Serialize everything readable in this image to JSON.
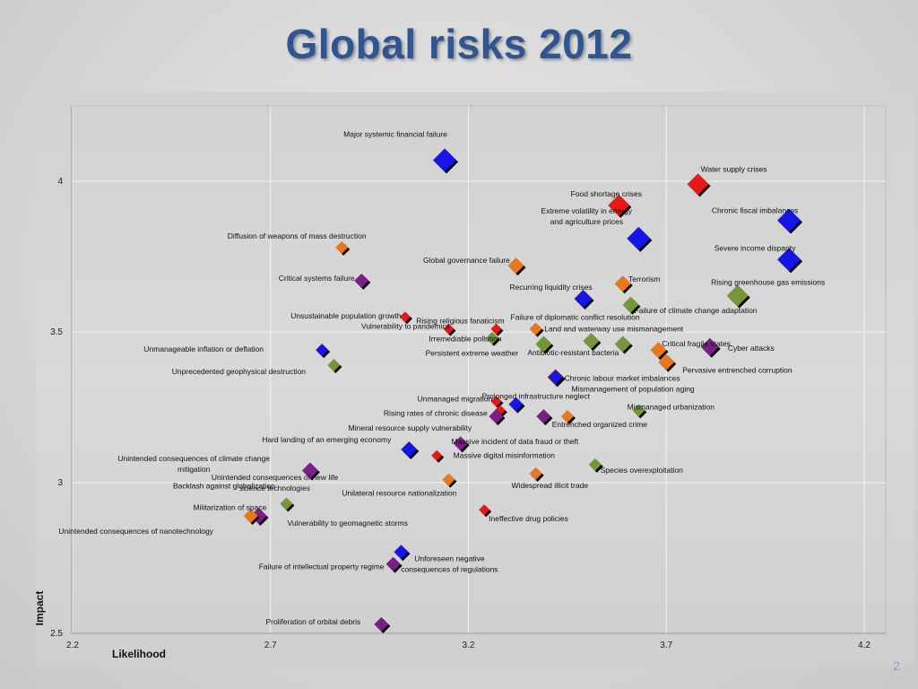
{
  "slide": {
    "title": "Global risks 2012",
    "page_number": "2"
  },
  "colors": {
    "blue": "#1515e6",
    "red": "#e61919",
    "orange": "#e6781e",
    "green": "#76963a",
    "purple": "#7a1f86"
  },
  "chart_data": {
    "type": "scatter",
    "xlabel": "Likelihood",
    "ylabel": "Impact",
    "xlim": [
      2.2,
      4.3
    ],
    "ylim": [
      2.5,
      4.25
    ],
    "xticks": [
      "2.2",
      "2.7",
      "3.2",
      "3.7",
      "4.2"
    ],
    "yticks": [
      "2.5",
      "3",
      "3.5",
      "4"
    ],
    "grid": true,
    "points": [
      {
        "label": "Major systemic financial failure",
        "x": 3.14,
        "y": 4.07,
        "c": "blue",
        "s": 13
      },
      {
        "label": "Water supply crises",
        "x": 3.78,
        "y": 3.99,
        "c": "red",
        "s": 12
      },
      {
        "label": "Food shortage crises",
        "x": 3.58,
        "y": 3.92,
        "c": "red",
        "s": 12
      },
      {
        "label": "Chronic fiscal imbalances",
        "x": 4.01,
        "y": 3.87,
        "c": "blue",
        "s": 13
      },
      {
        "label": "Extreme volatility in energy and agriculture prices",
        "x": 3.63,
        "y": 3.81,
        "c": "blue",
        "s": 13
      },
      {
        "label": "Diffusion of weapons of mass destruction",
        "x": 2.88,
        "y": 3.78,
        "c": "orange",
        "s": 7
      },
      {
        "label": "Severe income disparity",
        "x": 4.01,
        "y": 3.74,
        "c": "blue",
        "s": 13
      },
      {
        "label": "Global governance failure",
        "x": 3.32,
        "y": 3.72,
        "c": "orange",
        "s": 9
      },
      {
        "label": "Critical systems failure",
        "x": 2.93,
        "y": 3.67,
        "c": "purple",
        "s": 8
      },
      {
        "label": "Terrorism",
        "x": 3.59,
        "y": 3.66,
        "c": "orange",
        "s": 9
      },
      {
        "label": "Rising greenhouse gas emissions",
        "x": 3.88,
        "y": 3.62,
        "c": "green",
        "s": 12
      },
      {
        "label": "Recurring liquidity crises",
        "x": 3.49,
        "y": 3.61,
        "c": "blue",
        "s": 10
      },
      {
        "label": "Failure of climate change adaptation",
        "x": 3.61,
        "y": 3.59,
        "c": "green",
        "s": 9
      },
      {
        "label": "Unsustainable population growth",
        "x": 3.04,
        "y": 3.55,
        "c": "red",
        "s": 6
      },
      {
        "label": "Rising religious fanaticism",
        "x": 3.27,
        "y": 3.51,
        "c": "red",
        "s": 6
      },
      {
        "label": "Failure of diplomatic conflict resolution",
        "x": 3.37,
        "y": 3.51,
        "c": "orange",
        "s": 7
      },
      {
        "label": "Vulnerability to pandemics",
        "x": 3.15,
        "y": 3.51,
        "c": "red",
        "s": 6
      },
      {
        "label": "Land and waterway use mismanagement",
        "x": 3.59,
        "y": 3.46,
        "c": "green",
        "s": 9
      },
      {
        "label": "Critical fragile states",
        "x": 3.68,
        "y": 3.44,
        "c": "orange",
        "s": 9
      },
      {
        "label": "Irremediable pollution",
        "x": 3.26,
        "y": 3.48,
        "c": "green",
        "s": 7
      },
      {
        "label": "Persistent extreme weather",
        "x": 3.39,
        "y": 3.46,
        "c": "green",
        "s": 9
      },
      {
        "label": "Antibiotic-resistant bacteria",
        "x": 3.51,
        "y": 3.47,
        "c": "green",
        "s": 9
      },
      {
        "label": "Cyber attacks",
        "x": 3.81,
        "y": 3.45,
        "c": "purple",
        "s": 10
      },
      {
        "label": "Unmanageable inflation or deflation",
        "x": 2.83,
        "y": 3.44,
        "c": "blue",
        "s": 7
      },
      {
        "label": "Unprecedented geophysical destruction",
        "x": 2.86,
        "y": 3.39,
        "c": "green",
        "s": 7
      },
      {
        "label": "Pervasive entrenched corruption",
        "x": 3.7,
        "y": 3.4,
        "c": "orange",
        "s": 9
      },
      {
        "label": "Chronic labour market imbalances",
        "x": 3.42,
        "y": 3.35,
        "c": "red",
        "s": 9
      },
      {
        "label": "Mismanagement of population aging",
        "x": 3.42,
        "y": 3.35,
        "c": "blue",
        "s": 8
      },
      {
        "label": "Unmanaged migration",
        "x": 3.27,
        "y": 3.27,
        "c": "red",
        "s": 6
      },
      {
        "label": "Prolonged infrastructure neglect",
        "x": 3.32,
        "y": 3.26,
        "c": "blue",
        "s": 8
      },
      {
        "label": "Rising rates of chronic disease",
        "x": 3.28,
        "y": 3.24,
        "c": "red",
        "s": 6
      },
      {
        "label": "Mismanaged urbanization",
        "x": 3.63,
        "y": 3.24,
        "c": "green",
        "s": 7
      },
      {
        "label": "Mineral resource supply vulnerability",
        "x": 3.27,
        "y": 3.22,
        "c": "purple",
        "s": 8
      },
      {
        "label": "Entrenched organized crime",
        "x": 3.45,
        "y": 3.22,
        "c": "orange",
        "s": 7
      },
      {
        "label": "Massive incident of data fraud or theft",
        "x": 3.39,
        "y": 3.22,
        "c": "purple",
        "s": 8
      },
      {
        "label": "Hard landing of an emerging economy",
        "x": 3.05,
        "y": 3.11,
        "c": "blue",
        "s": 9
      },
      {
        "label": "Massive digital misinformation",
        "x": 3.18,
        "y": 3.13,
        "c": "purple",
        "s": 8
      },
      {
        "label": "Unintended consequences of climate change mitigation",
        "x": 3.12,
        "y": 3.09,
        "c": "red",
        "s": 6
      },
      {
        "label": "Backlash against globalization",
        "x": 2.8,
        "y": 3.04,
        "c": "purple",
        "s": 9
      },
      {
        "label": "Species overexploitation",
        "x": 3.52,
        "y": 3.06,
        "c": "green",
        "s": 7
      },
      {
        "label": "Unintended consequences of new life science technologies",
        "x": 3.37,
        "y": 3.03,
        "c": "orange",
        "s": 7
      },
      {
        "label": "Unilateral resource nationalization",
        "x": 3.15,
        "y": 3.01,
        "c": "orange",
        "s": 7
      },
      {
        "label": "Widespread illicit trade",
        "x": 3.37,
        "y": 3.03,
        "c": "orange",
        "s": 7
      },
      {
        "label": "Militarization of space",
        "x": 2.74,
        "y": 2.93,
        "c": "green",
        "s": 7
      },
      {
        "label": "Vulnerability to geomagnetic storms",
        "x": 2.67,
        "y": 2.89,
        "c": "purple",
        "s": 9
      },
      {
        "label": "Ineffective drug policies",
        "x": 3.24,
        "y": 2.91,
        "c": "red",
        "s": 6
      },
      {
        "label": "Unintended consequences of nanotechnology",
        "x": 2.65,
        "y": 2.89,
        "c": "orange",
        "s": 8
      },
      {
        "label": "Unforeseen negative consequences of regulations",
        "x": 3.03,
        "y": 2.77,
        "c": "blue",
        "s": 8
      },
      {
        "label": "Failure of intellectual property regime",
        "x": 3.01,
        "y": 2.73,
        "c": "purple",
        "s": 8
      },
      {
        "label": "Proliferation of orbital debris",
        "x": 2.98,
        "y": 2.53,
        "c": "purple",
        "s": 8
      }
    ]
  }
}
